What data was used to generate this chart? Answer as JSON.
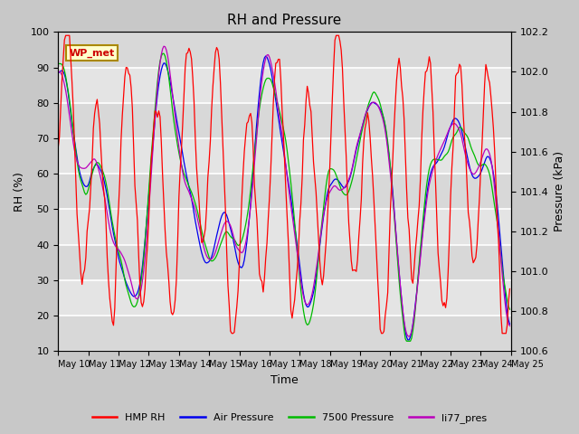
{
  "title": "RH and Pressure",
  "xlabel": "Time",
  "ylabel_left": "RH (%)",
  "ylabel_right": "Pressure (kPa)",
  "ylim_left": [
    10,
    100
  ],
  "ylim_right": [
    100.6,
    102.2
  ],
  "annotation": "WP_met",
  "legend_labels": [
    "HMP RH",
    "Air Pressure",
    "7500 Pressure",
    "li77_pres"
  ],
  "legend_colors": [
    "#ff0000",
    "#0000ee",
    "#00bb00",
    "#bb00bb"
  ],
  "x_tick_labels": [
    "May 10",
    "May 11",
    "May 12",
    "May 13",
    "May 14",
    "May 15",
    "May 16",
    "May 17",
    "May 18",
    "May 19",
    "May 20",
    "May 21",
    "May 22",
    "May 23",
    "May 24",
    "May 25"
  ],
  "fig_bg": "#c8c8c8",
  "plot_bg": "#dcdcdc",
  "grid_color": "#f0f0f0"
}
